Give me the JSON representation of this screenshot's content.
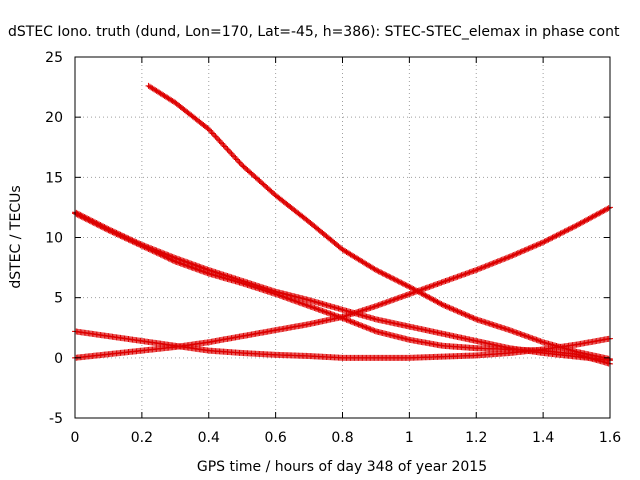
{
  "chart_data": {
    "type": "scatter",
    "title": "dSTEC Iono. truth (dund, Lon=170, Lat=-45, h=386): STEC-STEC_elemax in phase cont",
    "xlabel": "GPS time / hours of day 348 of year 2015",
    "ylabel": "dSTEC  / TECUs",
    "xlim": [
      0,
      1.6
    ],
    "ylim": [
      -5,
      25
    ],
    "x_ticks": [
      0,
      0.2,
      0.4,
      0.6,
      0.8,
      1,
      1.2,
      1.4,
      1.6
    ],
    "x_tick_labels": [
      "0",
      "0.2",
      "0.4",
      "0.6",
      "0.8",
      "1",
      "1.2",
      "1.4",
      "1.6"
    ],
    "y_ticks": [
      -5,
      0,
      5,
      10,
      15,
      20,
      25
    ],
    "y_tick_labels": [
      "-5",
      "0",
      "5",
      "10",
      "15",
      "20",
      "25"
    ],
    "grid": true,
    "marker": "plus",
    "color": "#dd0000",
    "series": [
      {
        "x": [
          0.0,
          0.1,
          0.2,
          0.3,
          0.4,
          0.5,
          0.6,
          0.7,
          0.8,
          0.9,
          1.0,
          1.1,
          1.2,
          1.3,
          1.4,
          1.5,
          1.6
        ],
        "y": [
          12.1,
          10.7,
          9.4,
          8.3,
          7.3,
          6.4,
          5.5,
          4.8,
          4.0,
          3.2,
          2.6,
          2.0,
          1.4,
          0.8,
          0.4,
          0.1,
          -0.2
        ]
      },
      {
        "x": [
          0.22,
          0.3,
          0.4,
          0.5,
          0.6,
          0.7,
          0.8,
          0.9,
          1.0,
          1.1,
          1.2,
          1.3,
          1.4,
          1.5,
          1.6
        ],
        "y": [
          22.6,
          21.2,
          19.0,
          16.0,
          13.5,
          11.3,
          9.0,
          7.3,
          5.9,
          4.4,
          3.2,
          2.3,
          1.3,
          0.5,
          -0.1
        ]
      },
      {
        "x": [
          0.0,
          0.1,
          0.2,
          0.3,
          0.4,
          0.5,
          0.6,
          0.7,
          0.8,
          0.9,
          1.0,
          1.1,
          1.2,
          1.3,
          1.4,
          1.5,
          1.6
        ],
        "y": [
          12.0,
          10.6,
          9.3,
          8.0,
          7.0,
          6.2,
          5.3,
          4.3,
          3.3,
          2.2,
          1.5,
          1.0,
          0.8,
          0.7,
          0.6,
          0.3,
          -0.5
        ]
      },
      {
        "x": [
          0.0,
          0.1,
          0.2,
          0.3,
          0.4,
          0.5,
          0.6,
          0.7,
          0.8,
          0.9,
          1.0,
          1.1,
          1.2,
          1.3,
          1.4,
          1.5,
          1.6
        ],
        "y": [
          2.2,
          1.8,
          1.4,
          1.0,
          0.6,
          0.4,
          0.25,
          0.15,
          0.0,
          0.0,
          0.0,
          0.1,
          0.2,
          0.4,
          0.7,
          1.1,
          1.6
        ]
      },
      {
        "x": [
          0.0,
          0.1,
          0.2,
          0.3,
          0.4,
          0.5,
          0.6,
          0.7,
          0.8,
          0.9,
          1.0,
          1.1,
          1.2,
          1.3,
          1.4,
          1.5,
          1.6
        ],
        "y": [
          0.0,
          0.3,
          0.6,
          0.9,
          1.3,
          1.8,
          2.3,
          2.8,
          3.4,
          4.3,
          5.3,
          6.3,
          7.3,
          8.4,
          9.6,
          11.0,
          12.5
        ]
      }
    ]
  }
}
